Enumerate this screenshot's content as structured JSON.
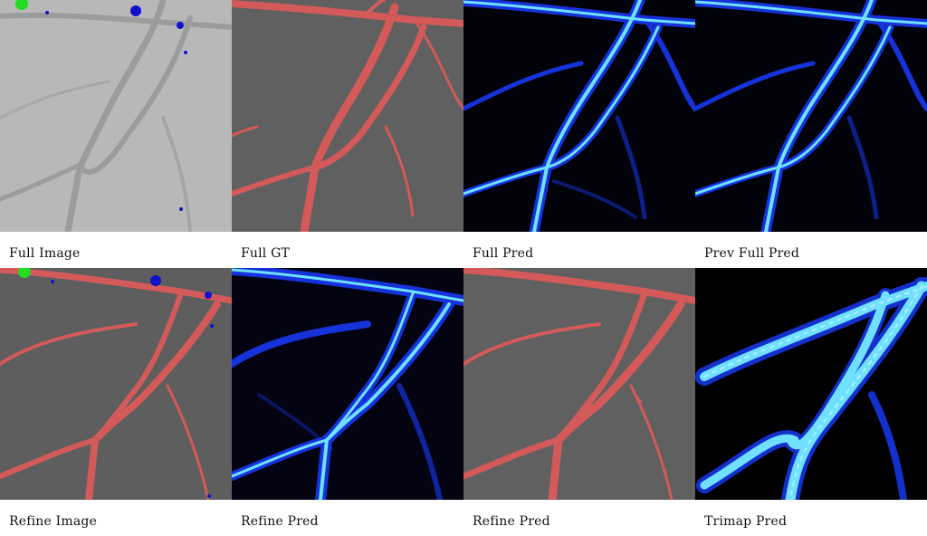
{
  "colors": {
    "background": "#ffffff",
    "gray_photo": "#b5b5b5",
    "dark_photo": "#5e5e5e",
    "vessel_mask": "#d45a5a",
    "pred_background": "#02020a",
    "pred_core": "#6fe0ff",
    "pred_edge": "#1a3cff",
    "click_positive": "#22dd22",
    "click_negative": "#1111cc"
  },
  "panels": [
    {
      "caption": "Full Image"
    },
    {
      "caption": "Full GT"
    },
    {
      "caption": "Full Pred"
    },
    {
      "caption": "Prev Full Pred"
    },
    {
      "caption": "Refine Image"
    },
    {
      "caption": "Refine Pred"
    },
    {
      "caption": "Refine Pred"
    },
    {
      "caption": "Trimap Pred"
    }
  ]
}
